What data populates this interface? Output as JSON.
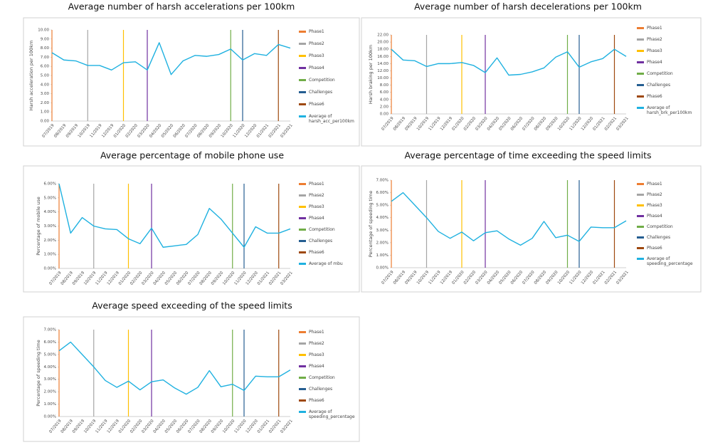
{
  "chart_data": [
    {
      "type": "line",
      "title": "Average number of harsh accelerations per 100km",
      "ylabel": "Harsh acceleration per 100km",
      "categories": [
        "07/2019",
        "08/2019",
        "09/2019",
        "10/2019",
        "11/2019",
        "12/2019",
        "01/2020",
        "02/2020",
        "03/2020",
        "04/2020",
        "05/2020",
        "06/2020",
        "07/2020",
        "08/2020",
        "09/2020",
        "10/2020",
        "11/2020",
        "12/2020",
        "01/2021",
        "02/2021",
        "03/2021"
      ],
      "ylim": [
        0,
        10
      ],
      "yticks": [
        {
          "value": 0,
          "label": "0.00"
        },
        {
          "value": 1,
          "label": "1.00"
        },
        {
          "value": 2,
          "label": "2.00"
        },
        {
          "value": 3,
          "label": "3.00"
        },
        {
          "value": 4,
          "label": "4.00"
        },
        {
          "value": 5,
          "label": "5.00"
        },
        {
          "value": 6,
          "label": "6.00"
        },
        {
          "value": 7,
          "label": "7.00"
        },
        {
          "value": 8,
          "label": "8.00"
        },
        {
          "value": 9,
          "label": "9.00"
        },
        {
          "value": 10,
          "label": "10.00"
        }
      ],
      "phases": [
        {
          "name": "Phase1",
          "color": "#ed7d31",
          "category": "07/2019"
        },
        {
          "name": "Phase2",
          "color": "#a5a5a5",
          "category": "10/2019"
        },
        {
          "name": "Phase3",
          "color": "#ffc000",
          "category": "01/2020"
        },
        {
          "name": "Phase4",
          "color": "#7030a0",
          "category": "03/2020"
        },
        {
          "name": "Competition",
          "color": "#70ad47",
          "category": "10/2020"
        },
        {
          "name": "Challenges",
          "color": "#255e91",
          "category": "11/2020"
        },
        {
          "name": "Phase6",
          "color": "#9e480e",
          "category": "02/2021"
        }
      ],
      "series": [
        {
          "name": "Average of harsh_acc_per100km",
          "color": "#1fb1e0",
          "values": [
            7.5,
            6.7,
            6.6,
            6.1,
            6.1,
            5.6,
            6.4,
            6.5,
            5.6,
            8.6,
            5.1,
            6.6,
            7.2,
            7.1,
            7.3,
            7.9,
            6.7,
            7.4,
            7.2,
            8.4,
            8.0
          ]
        }
      ]
    },
    {
      "type": "line",
      "title": "Average number of harsh decelerations per 100km",
      "ylabel": "Harsh braking per 100km",
      "categories": [
        "07/2019",
        "08/2019",
        "09/2019",
        "10/2019",
        "11/2019",
        "12/2019",
        "01/2020",
        "02/2020",
        "03/2020",
        "04/2020",
        "05/2020",
        "06/2020",
        "07/2020",
        "08/2020",
        "09/2020",
        "10/2020",
        "11/2020",
        "12/2020",
        "01/2021",
        "02/2021",
        "03/2021"
      ],
      "ylim": [
        0,
        22
      ],
      "yticks": [
        {
          "value": 0,
          "label": "0.00"
        },
        {
          "value": 2,
          "label": "2.00"
        },
        {
          "value": 4,
          "label": "4.00"
        },
        {
          "value": 6,
          "label": "6.00"
        },
        {
          "value": 8,
          "label": "8.00"
        },
        {
          "value": 10,
          "label": "10.00"
        },
        {
          "value": 12,
          "label": "12.00"
        },
        {
          "value": 14,
          "label": "14.00"
        },
        {
          "value": 16,
          "label": "16.00"
        },
        {
          "value": 18,
          "label": "18.00"
        },
        {
          "value": 20,
          "label": "20.00"
        },
        {
          "value": 22,
          "label": "22.00"
        }
      ],
      "phases": [
        {
          "name": "Phase1",
          "color": "#ed7d31",
          "category": "07/2019"
        },
        {
          "name": "Phase2",
          "color": "#a5a5a5",
          "category": "10/2019"
        },
        {
          "name": "Phase3",
          "color": "#ffc000",
          "category": "01/2020"
        },
        {
          "name": "Phase4",
          "color": "#7030a0",
          "category": "03/2020"
        },
        {
          "name": "Competition",
          "color": "#70ad47",
          "category": "10/2020"
        },
        {
          "name": "Challenges",
          "color": "#255e91",
          "category": "11/2020"
        },
        {
          "name": "Phase6",
          "color": "#9e480e",
          "category": "02/2021"
        }
      ],
      "series": [
        {
          "name": "Average of harsh_brk_per100km",
          "color": "#1fb1e0",
          "values": [
            18.0,
            15.0,
            14.8,
            13.2,
            14.0,
            14.0,
            14.3,
            13.5,
            11.5,
            15.6,
            10.8,
            11.0,
            11.7,
            12.8,
            15.8,
            17.3,
            13.0,
            14.5,
            15.4,
            18.0,
            16.0
          ]
        }
      ]
    },
    {
      "type": "line",
      "title": "Average percentage of mobile phone use",
      "ylabel": "Percentage of mobile use",
      "categories": [
        "07/2019",
        "08/2019",
        "09/2019",
        "10/2019",
        "11/2019",
        "12/2019",
        "01/2020",
        "02/2020",
        "03/2020",
        "04/2020",
        "05/2020",
        "06/2020",
        "07/2020",
        "08/2020",
        "09/2020",
        "10/2020",
        "11/2020",
        "12/2020",
        "01/2021",
        "02/2021",
        "03/2021"
      ],
      "ylim": [
        0,
        6
      ],
      "yticks": [
        {
          "value": 0,
          "label": "0.00%"
        },
        {
          "value": 1,
          "label": "1.00%"
        },
        {
          "value": 2,
          "label": "2.00%"
        },
        {
          "value": 3,
          "label": "3.00%"
        },
        {
          "value": 4,
          "label": "4.00%"
        },
        {
          "value": 5,
          "label": "5.00%"
        },
        {
          "value": 6,
          "label": "6.00%"
        }
      ],
      "phases": [
        {
          "name": "Phase1",
          "color": "#ed7d31",
          "category": "07/2019"
        },
        {
          "name": "Phase2",
          "color": "#a5a5a5",
          "category": "10/2019"
        },
        {
          "name": "Phase3",
          "color": "#ffc000",
          "category": "01/2020"
        },
        {
          "name": "Phase4",
          "color": "#7030a0",
          "category": "03/2020"
        },
        {
          "name": "Competition",
          "color": "#70ad47",
          "category": "10/2020"
        },
        {
          "name": "Challenges",
          "color": "#255e91",
          "category": "11/2020"
        },
        {
          "name": "Phase6",
          "color": "#9e480e",
          "category": "02/2021"
        }
      ],
      "series": [
        {
          "name": "Average of mbu",
          "color": "#1fb1e0",
          "values": [
            6.0,
            2.5,
            3.6,
            3.0,
            2.8,
            2.75,
            2.1,
            1.75,
            2.85,
            1.5,
            1.6,
            1.7,
            2.4,
            4.25,
            3.5,
            2.5,
            1.5,
            2.95,
            2.5,
            2.5,
            2.8
          ]
        }
      ]
    },
    {
      "type": "line",
      "title": "Average percentage of time exceeding the speed limits",
      "ylabel": "Percentage of speeding time",
      "categories": [
        "07/2019",
        "08/2019",
        "09/2019",
        "10/2019",
        "11/2019",
        "12/2019",
        "01/2020",
        "02/2020",
        "03/2020",
        "04/2020",
        "05/2020",
        "06/2020",
        "07/2020",
        "08/2020",
        "09/2020",
        "10/2020",
        "11/2020",
        "12/2020",
        "01/2021",
        "02/2021",
        "03/2021"
      ],
      "ylim": [
        0,
        7
      ],
      "yticks": [
        {
          "value": 0,
          "label": "0.00%"
        },
        {
          "value": 1,
          "label": "1.00%"
        },
        {
          "value": 2,
          "label": "2.00%"
        },
        {
          "value": 3,
          "label": "3.00%"
        },
        {
          "value": 4,
          "label": "4.00%"
        },
        {
          "value": 5,
          "label": "5.00%"
        },
        {
          "value": 6,
          "label": "6.00%"
        },
        {
          "value": 7,
          "label": "7.00%"
        }
      ],
      "phases": [
        {
          "name": "Phase1",
          "color": "#ed7d31",
          "category": "07/2019"
        },
        {
          "name": "Phase2",
          "color": "#a5a5a5",
          "category": "10/2019"
        },
        {
          "name": "Phase3",
          "color": "#ffc000",
          "category": "01/2020"
        },
        {
          "name": "Phase4",
          "color": "#7030a0",
          "category": "03/2020"
        },
        {
          "name": "Competition",
          "color": "#70ad47",
          "category": "10/2020"
        },
        {
          "name": "Challenges",
          "color": "#255e91",
          "category": "11/2020"
        },
        {
          "name": "Phase6",
          "color": "#9e480e",
          "category": "02/2021"
        }
      ],
      "series": [
        {
          "name": "Average of speeding_percentage",
          "color": "#1fb1e0",
          "values": [
            5.3,
            6.0,
            5.0,
            4.0,
            2.9,
            2.35,
            2.85,
            2.15,
            2.8,
            2.95,
            2.3,
            1.8,
            2.35,
            3.7,
            2.4,
            2.6,
            2.1,
            3.25,
            3.2,
            3.2,
            3.75
          ]
        }
      ]
    },
    {
      "type": "line",
      "title": "Average speed exceeding of the speed limits",
      "ylabel": "Percentage of speeding time",
      "categories": [
        "07/2019",
        "08/2019",
        "09/2019",
        "10/2019",
        "11/2019",
        "12/2019",
        "01/2020",
        "02/2020",
        "03/2020",
        "04/2020",
        "05/2020",
        "06/2020",
        "07/2020",
        "08/2020",
        "09/2020",
        "10/2020",
        "11/2020",
        "12/2020",
        "01/2021",
        "02/2021",
        "03/2021"
      ],
      "ylim": [
        0,
        7
      ],
      "yticks": [
        {
          "value": 0,
          "label": "0.00%"
        },
        {
          "value": 1,
          "label": "1.00%"
        },
        {
          "value": 2,
          "label": "2.00%"
        },
        {
          "value": 3,
          "label": "3.00%"
        },
        {
          "value": 4,
          "label": "4.00%"
        },
        {
          "value": 5,
          "label": "5.00%"
        },
        {
          "value": 6,
          "label": "6.00%"
        },
        {
          "value": 7,
          "label": "7.00%"
        }
      ],
      "phases": [
        {
          "name": "Phase1",
          "color": "#ed7d31",
          "category": "07/2019"
        },
        {
          "name": "Phase2",
          "color": "#a5a5a5",
          "category": "10/2019"
        },
        {
          "name": "Phase3",
          "color": "#ffc000",
          "category": "01/2020"
        },
        {
          "name": "Phase4",
          "color": "#7030a0",
          "category": "03/2020"
        },
        {
          "name": "Competition",
          "color": "#70ad47",
          "category": "10/2020"
        },
        {
          "name": "Challenges",
          "color": "#255e91",
          "category": "11/2020"
        },
        {
          "name": "Phase6",
          "color": "#9e480e",
          "category": "02/2021"
        }
      ],
      "series": [
        {
          "name": "Average of speeding_percentage",
          "color": "#1fb1e0",
          "values": [
            5.3,
            6.0,
            5.0,
            4.0,
            2.9,
            2.35,
            2.85,
            2.15,
            2.8,
            2.95,
            2.3,
            1.8,
            2.35,
            3.7,
            2.4,
            2.6,
            2.1,
            3.25,
            3.2,
            3.2,
            3.75
          ]
        }
      ]
    }
  ]
}
